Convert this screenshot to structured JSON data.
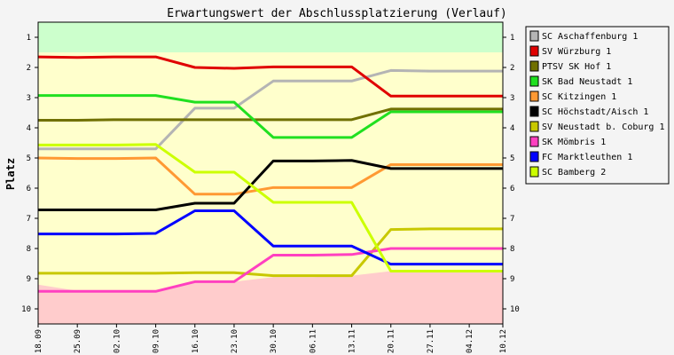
{
  "chart_data": {
    "type": "line",
    "title": "Erwartungswert der Abschlussplatzierung (Verlauf)",
    "ylabel": "Platz",
    "xlabel": "",
    "x": [
      "18.09",
      "25.09",
      "02.10",
      "09.10",
      "16.10",
      "23.10",
      "30.10",
      "06.11",
      "13.11",
      "20.11",
      "27.11",
      "04.12",
      "10.12"
    ],
    "x_days": [
      0,
      7,
      14,
      21,
      28,
      35,
      42,
      49,
      56,
      63,
      70,
      77,
      83
    ],
    "ylim": [
      0.5,
      10.5
    ],
    "y_inverted": true,
    "yticks": [
      1,
      2,
      3,
      4,
      5,
      6,
      7,
      8,
      9,
      10
    ],
    "grid": false,
    "legend_position": "right",
    "zones": [
      {
        "name": "promotion",
        "color": "#ccffcc",
        "upper": [
          1.5,
          1.5,
          1.5,
          1.5,
          1.5,
          1.5,
          1.5,
          1.5,
          1.5,
          1.5,
          1.5,
          1.5,
          1.5
        ]
      },
      {
        "name": "midfield",
        "color": "#ffffcc"
      },
      {
        "name": "relegation",
        "color": "#ffcccc",
        "upper": [
          9.2,
          9.4,
          9.4,
          9.4,
          9.1,
          9.1,
          8.95,
          8.95,
          8.9,
          8.75,
          8.75,
          8.75,
          8.75
        ]
      }
    ],
    "series": [
      {
        "name": "SC Aschaffenburg 1",
        "color": "#b4b4b4",
        "values": [
          4.7,
          4.7,
          4.7,
          4.7,
          3.35,
          3.35,
          2.45,
          2.45,
          2.45,
          2.1,
          2.12,
          2.12,
          2.12
        ]
      },
      {
        "name": "SV Würzburg 1",
        "color": "#e00000",
        "values": [
          1.65,
          1.67,
          1.65,
          1.65,
          2.0,
          2.03,
          1.98,
          1.98,
          1.98,
          2.95,
          2.95,
          2.95,
          2.95
        ]
      },
      {
        "name": "PTSV SK Hof 1",
        "color": "#707000",
        "values": [
          3.75,
          3.75,
          3.73,
          3.73,
          3.73,
          3.73,
          3.73,
          3.73,
          3.73,
          3.38,
          3.38,
          3.38,
          3.38
        ]
      },
      {
        "name": "SK Bad Neustadt 1",
        "color": "#20e020",
        "values": [
          2.93,
          2.93,
          2.93,
          2.93,
          3.15,
          3.15,
          4.32,
          4.32,
          4.32,
          3.47,
          3.47,
          3.47,
          3.47
        ]
      },
      {
        "name": "SC Kitzingen 1",
        "color": "#ff9933",
        "values": [
          5.0,
          5.02,
          5.02,
          5.0,
          6.2,
          6.2,
          5.98,
          5.98,
          5.98,
          5.22,
          5.22,
          5.22,
          5.22
        ]
      },
      {
        "name": "SC Höchstadt/Aisch 1",
        "color": "#000000",
        "values": [
          6.72,
          6.72,
          6.72,
          6.72,
          6.5,
          6.5,
          5.1,
          5.1,
          5.08,
          5.35,
          5.35,
          5.35,
          5.35
        ]
      },
      {
        "name": "SV Neustadt b. Coburg 1",
        "color": "#c8c800",
        "values": [
          8.82,
          8.82,
          8.82,
          8.82,
          8.8,
          8.8,
          8.9,
          8.9,
          8.9,
          7.37,
          7.35,
          7.35,
          7.35
        ]
      },
      {
        "name": "SK Mömbris 1",
        "color": "#ff40c0",
        "values": [
          9.42,
          9.42,
          9.42,
          9.42,
          9.1,
          9.1,
          8.22,
          8.22,
          8.2,
          8.0,
          8.0,
          8.0,
          8.0
        ]
      },
      {
        "name": "FC Marktleuthen 1",
        "color": "#0000ff",
        "values": [
          7.52,
          7.52,
          7.52,
          7.5,
          6.75,
          6.75,
          7.92,
          7.92,
          7.92,
          8.52,
          8.52,
          8.52,
          8.52
        ]
      },
      {
        "name": "SC Bamberg 2",
        "color": "#ccff00",
        "values": [
          4.57,
          4.57,
          4.57,
          4.55,
          5.47,
          5.47,
          6.47,
          6.47,
          6.47,
          8.75,
          8.75,
          8.75,
          8.75
        ]
      }
    ]
  }
}
